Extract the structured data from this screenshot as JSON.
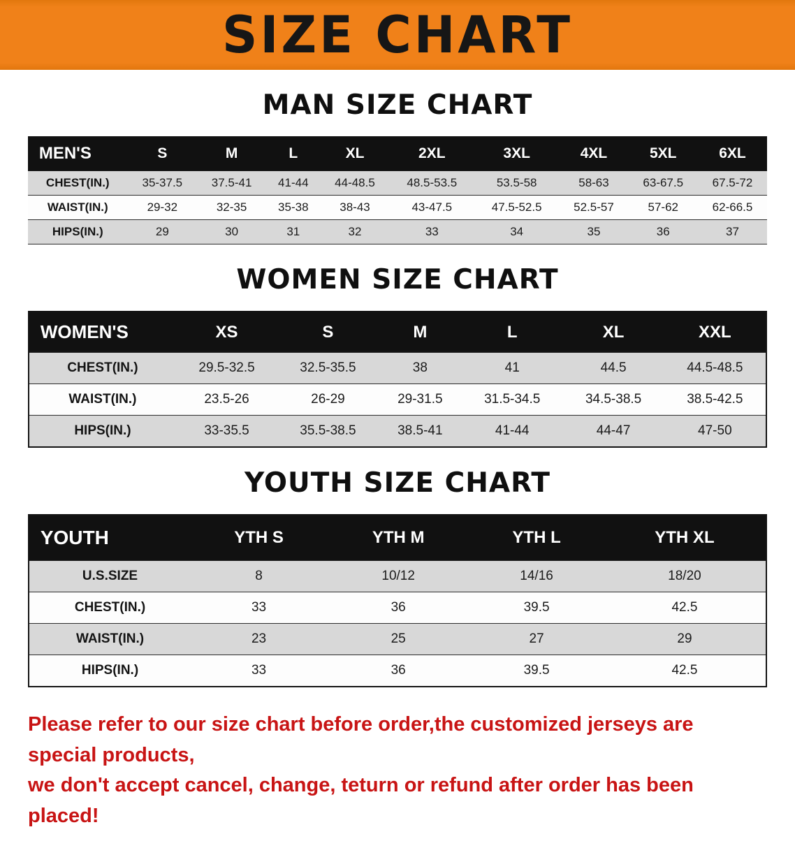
{
  "banner": {
    "title": "SIZE CHART"
  },
  "colors": {
    "banner_bg": "#f08119",
    "header_bg": "#111111",
    "stripe_gray": "#d8d8d8",
    "disclaimer_red": "#c81414"
  },
  "sections": [
    {
      "id": "men",
      "heading": "MAN SIZE CHART",
      "table": {
        "header": [
          "MEN'S",
          "S",
          "M",
          "L",
          "XL",
          "2XL",
          "3XL",
          "4XL",
          "5XL",
          "6XL"
        ],
        "rows": [
          [
            "CHEST(IN.)",
            "35-37.5",
            "37.5-41",
            "41-44",
            "44-48.5",
            "48.5-53.5",
            "53.5-58",
            "58-63",
            "63-67.5",
            "67.5-72"
          ],
          [
            "WAIST(IN.)",
            "29-32",
            "32-35",
            "35-38",
            "38-43",
            "43-47.5",
            "47.5-52.5",
            "52.5-57",
            "57-62",
            "62-66.5"
          ],
          [
            "HIPS(IN.)",
            "29",
            "30",
            "31",
            "32",
            "33",
            "34",
            "35",
            "36",
            "37"
          ]
        ]
      }
    },
    {
      "id": "women",
      "heading": "WOMEN SIZE CHART",
      "table": {
        "header": [
          "WOMEN'S",
          "XS",
          "S",
          "M",
          "L",
          "XL",
          "XXL"
        ],
        "rows": [
          [
            "CHEST(IN.)",
            "29.5-32.5",
            "32.5-35.5",
            "38",
            "41",
            "44.5",
            "44.5-48.5"
          ],
          [
            "WAIST(IN.)",
            "23.5-26",
            "26-29",
            "29-31.5",
            "31.5-34.5",
            "34.5-38.5",
            "38.5-42.5"
          ],
          [
            "HIPS(IN.)",
            "33-35.5",
            "35.5-38.5",
            "38.5-41",
            "41-44",
            "44-47",
            "47-50"
          ]
        ]
      }
    },
    {
      "id": "youth",
      "heading": "YOUTH SIZE CHART",
      "table": {
        "header": [
          "YOUTH",
          "YTH S",
          "YTH M",
          "YTH L",
          "YTH XL"
        ],
        "rows": [
          [
            "U.S.SIZE",
            "8",
            "10/12",
            "14/16",
            "18/20"
          ],
          [
            "CHEST(IN.)",
            "33",
            "36",
            "39.5",
            "42.5"
          ],
          [
            "WAIST(IN.)",
            "23",
            "25",
            "27",
            "29"
          ],
          [
            "HIPS(IN.)",
            "33",
            "36",
            "39.5",
            "42.5"
          ]
        ]
      }
    }
  ],
  "disclaimer": {
    "line1": "Please refer to our size chart before order,the customized jerseys are special products,",
    "line2": "we don't accept cancel, change, teturn or refund after order has been placed!"
  }
}
